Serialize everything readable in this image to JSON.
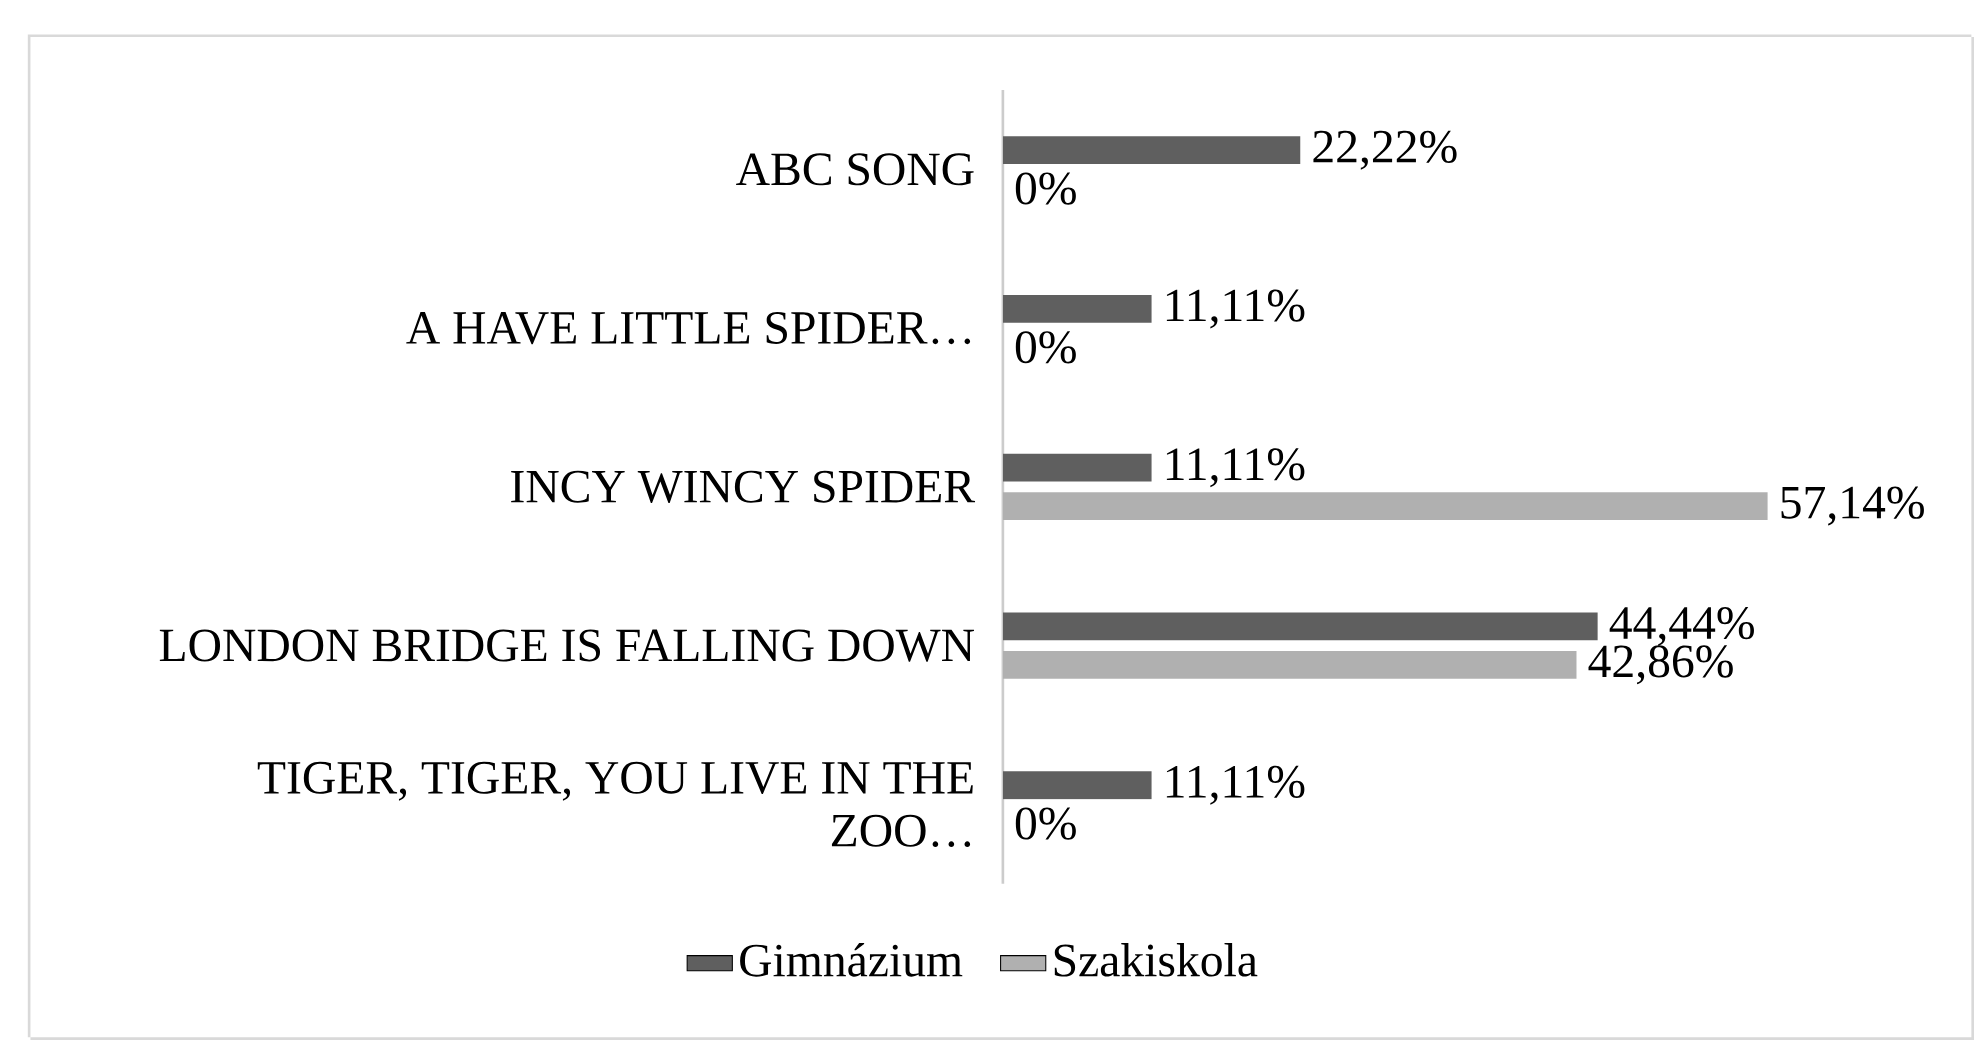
{
  "chart_data": {
    "type": "bar",
    "orientation": "horizontal",
    "categories": [
      "ABC SONG",
      "A HAVE LITTLE SPIDER…",
      "INCY WINCY SPIDER",
      "LONDON BRIDGE IS FALLING DOWN",
      "TIGER, TIGER, YOU LIVE IN THE ZOO…"
    ],
    "series": [
      {
        "name": "Gimnázium",
        "color": "#5f5f5f",
        "values": [
          22.22,
          11.11,
          11.11,
          44.44,
          11.11
        ],
        "value_labels": [
          "22,22%",
          "11,11%",
          "11,11%",
          "44,44%",
          "11,11%"
        ]
      },
      {
        "name": "Szakiskola",
        "color": "#b0b0b0",
        "values": [
          0,
          0,
          57.14,
          42.86,
          0
        ],
        "value_labels": [
          "0%",
          "0%",
          "57,14%",
          "42,86%",
          "0%"
        ]
      }
    ],
    "legend": "bottom"
  }
}
